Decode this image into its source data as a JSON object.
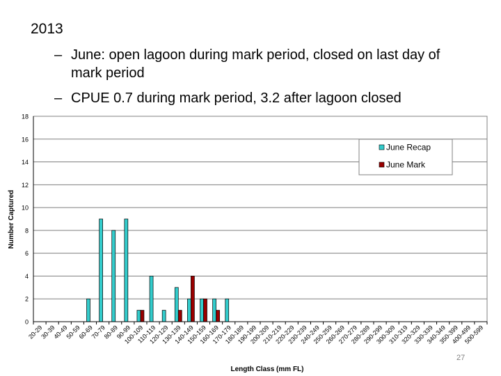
{
  "slide": {
    "heading": "2013",
    "bullets": [
      {
        "line1": "June: open lagoon during mark period, closed on last day of",
        "line2": "mark period"
      },
      {
        "line1": "CPUE 0.7 during mark period, 3.2 after lagoon closed",
        "line2": ""
      }
    ],
    "slide_number": "27"
  },
  "chart_data": {
    "type": "bar",
    "xlabel": "Length Class (mm FL)",
    "ylabel": "Number Captured",
    "ylim": [
      0,
      18
    ],
    "yticks": [
      0,
      2,
      4,
      6,
      8,
      10,
      12,
      14,
      16,
      18
    ],
    "grid": true,
    "legend_position": "top-right",
    "categories": [
      "20-29",
      "30-39",
      "40-49",
      "50-59",
      "60-69",
      "70-79",
      "80-89",
      "90-99",
      "100-109",
      "110-119",
      "120-129",
      "130-139",
      "140-149",
      "150-159",
      "160-169",
      "170-179",
      "180-189",
      "190-199",
      "200-209",
      "210-219",
      "220-229",
      "230-239",
      "240-249",
      "250-259",
      "260-269",
      "270-279",
      "280-289",
      "290-299",
      "300-309",
      "310-319",
      "320-329",
      "330-339",
      "340-349",
      "350-399",
      "400-499",
      "500-599"
    ],
    "series": [
      {
        "name": "June Recap",
        "color": "#33cccc",
        "values": [
          0,
          0,
          0,
          0,
          2,
          9,
          8,
          9,
          1,
          4,
          1,
          3,
          2,
          2,
          2,
          2,
          0,
          0,
          0,
          0,
          0,
          0,
          0,
          0,
          0,
          0,
          0,
          0,
          0,
          0,
          0,
          0,
          0,
          0,
          0,
          0
        ]
      },
      {
        "name": "June Mark",
        "color": "#990000",
        "values": [
          0,
          0,
          0,
          0,
          0,
          0,
          0,
          0,
          1,
          0,
          0,
          1,
          4,
          2,
          1,
          0,
          0,
          0,
          0,
          0,
          0,
          0,
          0,
          0,
          0,
          0,
          0,
          0,
          0,
          0,
          0,
          0,
          0,
          0,
          0,
          0
        ]
      }
    ]
  }
}
